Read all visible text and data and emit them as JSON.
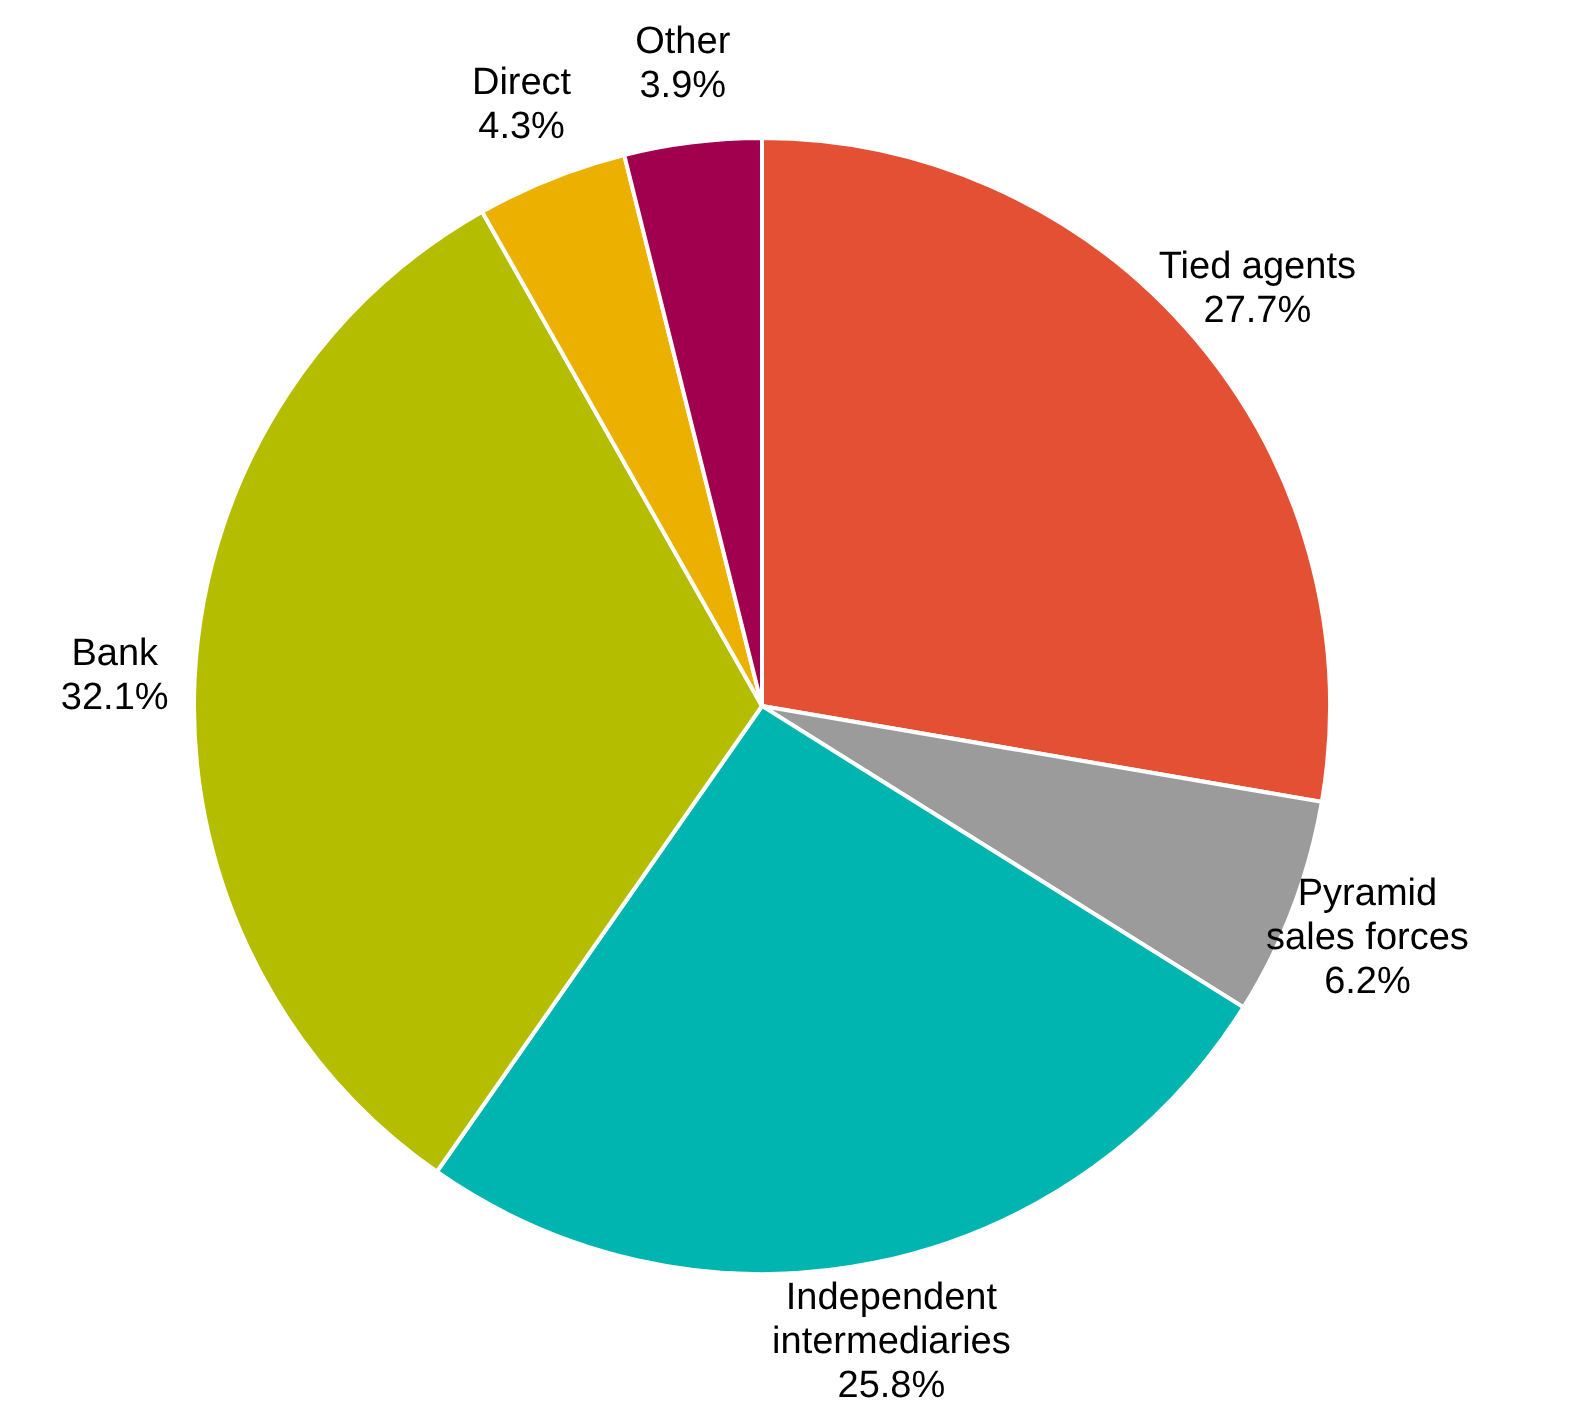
{
  "chart_data": {
    "type": "pie",
    "categories": [
      "Tied agents",
      "Pyramid sales forces",
      "Independent intermediaries",
      "Bank",
      "Direct",
      "Other"
    ],
    "values": [
      27.7,
      6.2,
      25.8,
      32.1,
      4.3,
      3.9
    ],
    "value_labels": [
      "27.7%",
      "6.2%",
      "25.8%",
      "32.1%",
      "4.3%",
      "3.9%"
    ],
    "colors": [
      "#e35034",
      "#9b9b9b",
      "#00b5b0",
      "#b5bd00",
      "#ecb100",
      "#a1004f"
    ],
    "legend": false
  }
}
